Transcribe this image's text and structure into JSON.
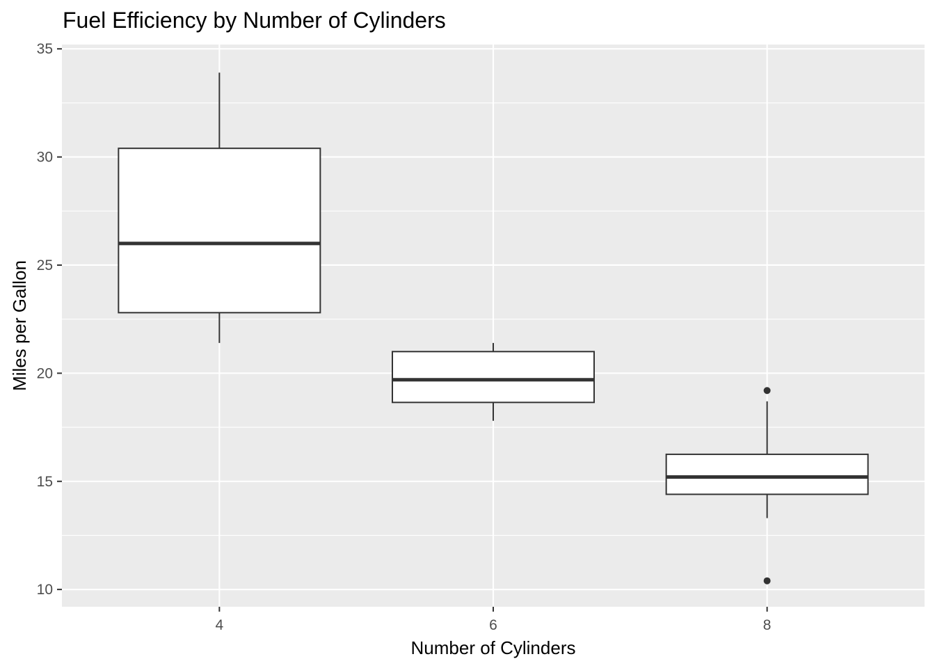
{
  "chart_data": {
    "type": "boxplot",
    "title": "Fuel Efficiency by Number of Cylinders",
    "xlabel": "Number of Cylinders",
    "ylabel": "Miles per Gallon",
    "ylim": [
      9.2,
      35.2
    ],
    "y_ticks": [
      10,
      15,
      20,
      25,
      30,
      35
    ],
    "x_ticks": [
      4,
      6,
      8
    ],
    "grid": true,
    "colors": {
      "panel_background": "#EBEBEB",
      "grid_major": "#FFFFFF",
      "box_fill": "#FFFFFF",
      "box_outline": "#333333",
      "tick_label": "#4D4D4D"
    },
    "categories": [
      "4",
      "6",
      "8"
    ],
    "boxes": [
      {
        "category": "4",
        "min": 21.4,
        "q1": 22.8,
        "median": 26.0,
        "q3": 30.4,
        "max": 33.9,
        "outliers": []
      },
      {
        "category": "6",
        "min": 17.8,
        "q1": 18.65,
        "median": 19.7,
        "q3": 21.0,
        "max": 21.4,
        "outliers": []
      },
      {
        "category": "8",
        "min": 13.3,
        "q1": 14.4,
        "median": 15.2,
        "q3": 16.25,
        "max": 18.7,
        "outliers": [
          19.2,
          10.4
        ]
      }
    ]
  }
}
